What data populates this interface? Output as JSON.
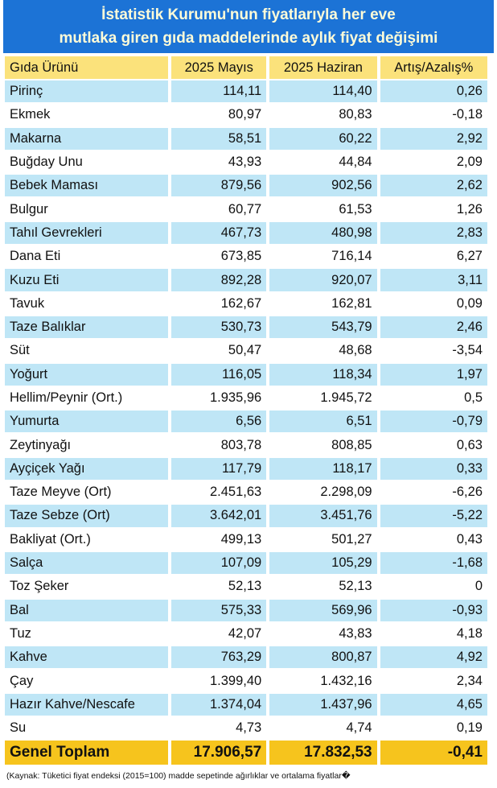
{
  "header": {
    "title_lines": [
      "İstatistik Kurumu'nun fiyatlarıyla her eve",
      "mutlaka giren gıda maddelerinde aylık fiyat değişimi"
    ]
  },
  "table": {
    "columns": [
      "Gıda Ürünü",
      "2025 Mayıs",
      "2025 Haziran",
      "Artış/Azalış%"
    ],
    "rows": [
      [
        "Pirinç",
        "114,11",
        "114,40",
        "0,26"
      ],
      [
        "Ekmek",
        "80,97",
        "80,83",
        "-0,18"
      ],
      [
        "Makarna",
        "58,51",
        "60,22",
        "2,92"
      ],
      [
        "Buğday Unu",
        "43,93",
        "44,84",
        "2,09"
      ],
      [
        "Bebek Maması",
        "879,56",
        "902,56",
        "2,62"
      ],
      [
        "Bulgur",
        "60,77",
        "61,53",
        "1,26"
      ],
      [
        "Tahıl Gevrekleri",
        "467,73",
        "480,98",
        "2,83"
      ],
      [
        "Dana Eti",
        "673,85",
        "716,14",
        "6,27"
      ],
      [
        "Kuzu Eti",
        "892,28",
        "920,07",
        "3,11"
      ],
      [
        "Tavuk",
        "162,67",
        "162,81",
        "0,09"
      ],
      [
        "Taze Balıklar",
        "530,73",
        "543,79",
        "2,46"
      ],
      [
        "Süt",
        "50,47",
        "48,68",
        "-3,54"
      ],
      [
        "Yoğurt",
        "116,05",
        "118,34",
        "1,97"
      ],
      [
        "Hellim/Peynir (Ort.)",
        "1.935,96",
        "1.945,72",
        "0,5"
      ],
      [
        "Yumurta",
        "6,56",
        "6,51",
        "-0,79"
      ],
      [
        "Zeytinyağı",
        "803,78",
        "808,85",
        "0,63"
      ],
      [
        "Ayçiçek Yağı",
        "117,79",
        "118,17",
        "0,33"
      ],
      [
        "Taze Meyve (Ort)",
        "2.451,63",
        "2.298,09",
        "-6,26"
      ],
      [
        "Taze Sebze (Ort)",
        "3.642,01",
        "3.451,76",
        "-5,22"
      ],
      [
        "Bakliyat (Ort.)",
        "499,13",
        "501,27",
        "0,43"
      ],
      [
        "Salça",
        "107,09",
        "105,29",
        "-1,68"
      ],
      [
        "Toz Şeker",
        "52,13",
        "52,13",
        "0"
      ],
      [
        "Bal",
        "575,33",
        "569,96",
        "-0,93"
      ],
      [
        "Tuz",
        "42,07",
        "43,83",
        "4,18"
      ],
      [
        "Kahve",
        "763,29",
        "800,87",
        "4,92"
      ],
      [
        "Çay",
        "1.399,40",
        "1.432,16",
        "2,34"
      ],
      [
        "Hazır Kahve/Nescafe",
        "1.374,04",
        "1.437,96",
        "4,65"
      ],
      [
        "Su",
        "4,73",
        "4,74",
        "0,19"
      ]
    ],
    "total": [
      "Genel Toplam",
      "17.906,57",
      "17.832,53",
      "-0,41"
    ]
  },
  "footnote": "(Kaynak: Tüketici fiyat endeksi (2015=100) madde sepetinde ağırlıklar ve ortalama fiyatlar�"
}
